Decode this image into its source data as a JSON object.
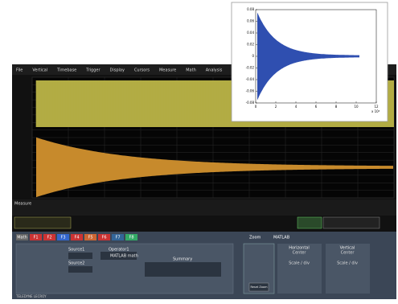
{
  "menu": [
    "File",
    "Vertical",
    "Timebase",
    "Trigger",
    "Display",
    "Cursors",
    "Measure",
    "Math",
    "Analysis"
  ],
  "measure_title": "Measure",
  "tabs": [
    "Math",
    "F1",
    "F2",
    "F3",
    "F4",
    "F5",
    "F6",
    "F7",
    "F8"
  ],
  "right_tabs": [
    "Zoom",
    "MATLAB"
  ],
  "dialog": {
    "source1": "Source1",
    "source2": "Source2",
    "operator": "Operator1",
    "operator_value": "MATLAB math",
    "summary": "Summary",
    "horizontal": "Horizontal",
    "vertical": "Vertical",
    "center": "Center",
    "scale": "Scale / div",
    "reset": "Reset Zoom"
  },
  "brand": "TELEDYNE LECROY",
  "inset_plot": {
    "xlim": [
      0,
      12
    ],
    "ylim": [
      -0.08,
      0.08
    ],
    "xticks": [
      0,
      2,
      4,
      6,
      8,
      10,
      12
    ],
    "yticks": [
      0.08,
      0.06,
      0.04,
      0.02,
      0,
      -0.02,
      -0.04,
      -0.06,
      -0.08
    ],
    "x_exponent": "x 10⁴"
  }
}
